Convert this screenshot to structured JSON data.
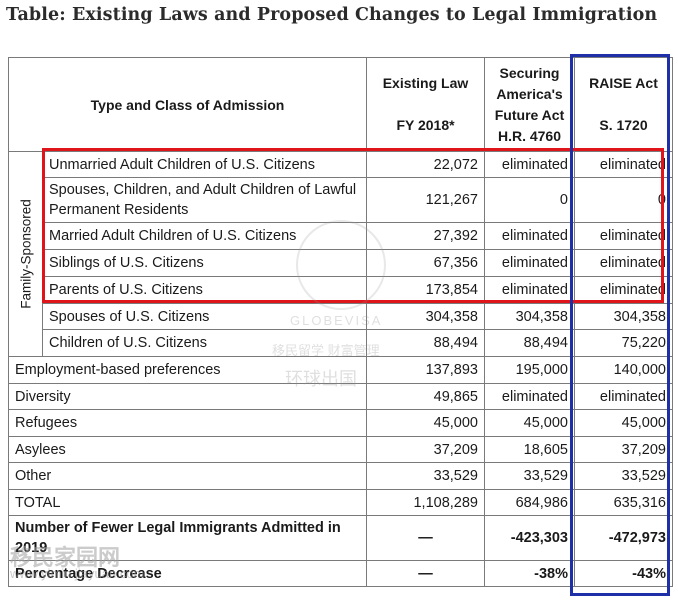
{
  "title": "Table: Existing Laws and Proposed Changes to Legal Immigration",
  "header": {
    "type_class": "Type and Class of Admission",
    "existing_law": "Existing Law",
    "existing_law_sub": "FY 2018*",
    "securing_l1": "Securing",
    "securing_l2": "America's",
    "securing_l3": "Future Act",
    "securing_sub": "H.R. 4760",
    "raise": "RAISE Act",
    "raise_sub": "S. 1720"
  },
  "family_label": "Family-Sponsored",
  "family_rows": [
    {
      "label": "Unmarried Adult Children of U.S. Citizens",
      "existing": "22,072",
      "securing": "eliminated",
      "raise": "eliminated"
    },
    {
      "label": "Spouses, Children, and Adult Children of Lawful Permanent Residents",
      "existing": "121,267",
      "securing": "0",
      "raise": "0"
    },
    {
      "label": "Married Adult Children of U.S. Citizens",
      "existing": "27,392",
      "securing": "eliminated",
      "raise": "eliminated"
    },
    {
      "label": "Siblings of U.S. Citizens",
      "existing": "67,356",
      "securing": "eliminated",
      "raise": "eliminated"
    },
    {
      "label": "Parents of U.S. Citizens",
      "existing": "173,854",
      "securing": "eliminated",
      "raise": "eliminated"
    },
    {
      "label": "Spouses of U.S. Citizens",
      "existing": "304,358",
      "securing": "304,358",
      "raise": "304,358"
    },
    {
      "label": "Children of U.S. Citizens",
      "existing": "88,494",
      "securing": "88,494",
      "raise": "75,220"
    }
  ],
  "other_rows": [
    {
      "label": "Employment-based preferences",
      "existing": "137,893",
      "securing": "195,000",
      "raise": "140,000"
    },
    {
      "label": "Diversity",
      "existing": "49,865",
      "securing": "eliminated",
      "raise": "eliminated"
    },
    {
      "label": "Refugees",
      "existing": "45,000",
      "securing": "45,000",
      "raise": "45,000"
    },
    {
      "label": "Asylees",
      "existing": "37,209",
      "securing": "18,605",
      "raise": "37,209"
    },
    {
      "label": "Other",
      "existing": "33,529",
      "securing": "33,529",
      "raise": "33,529"
    },
    {
      "label": "TOTAL",
      "existing": "1,108,289",
      "securing": "684,986",
      "raise": "635,316"
    }
  ],
  "fewer_row": {
    "label": "Number of Fewer Legal Immigrants Admitted in 2019",
    "existing": "—",
    "securing": "-423,303",
    "raise": "-472,973"
  },
  "pct_row": {
    "label": "Percentage Decrease",
    "existing": "—",
    "securing": "-38%",
    "raise": "-43%"
  },
  "highlight_colors": {
    "red_box": "#e0141b",
    "blue_box": "#1f2fa8"
  },
  "watermarks": {
    "w1": "GLOBEVISA",
    "w2": "移民留学 财富管理",
    "w3": "环球出国",
    "w4": "移民家园网",
    "w5": "www.yimin jiayuan.com"
  }
}
